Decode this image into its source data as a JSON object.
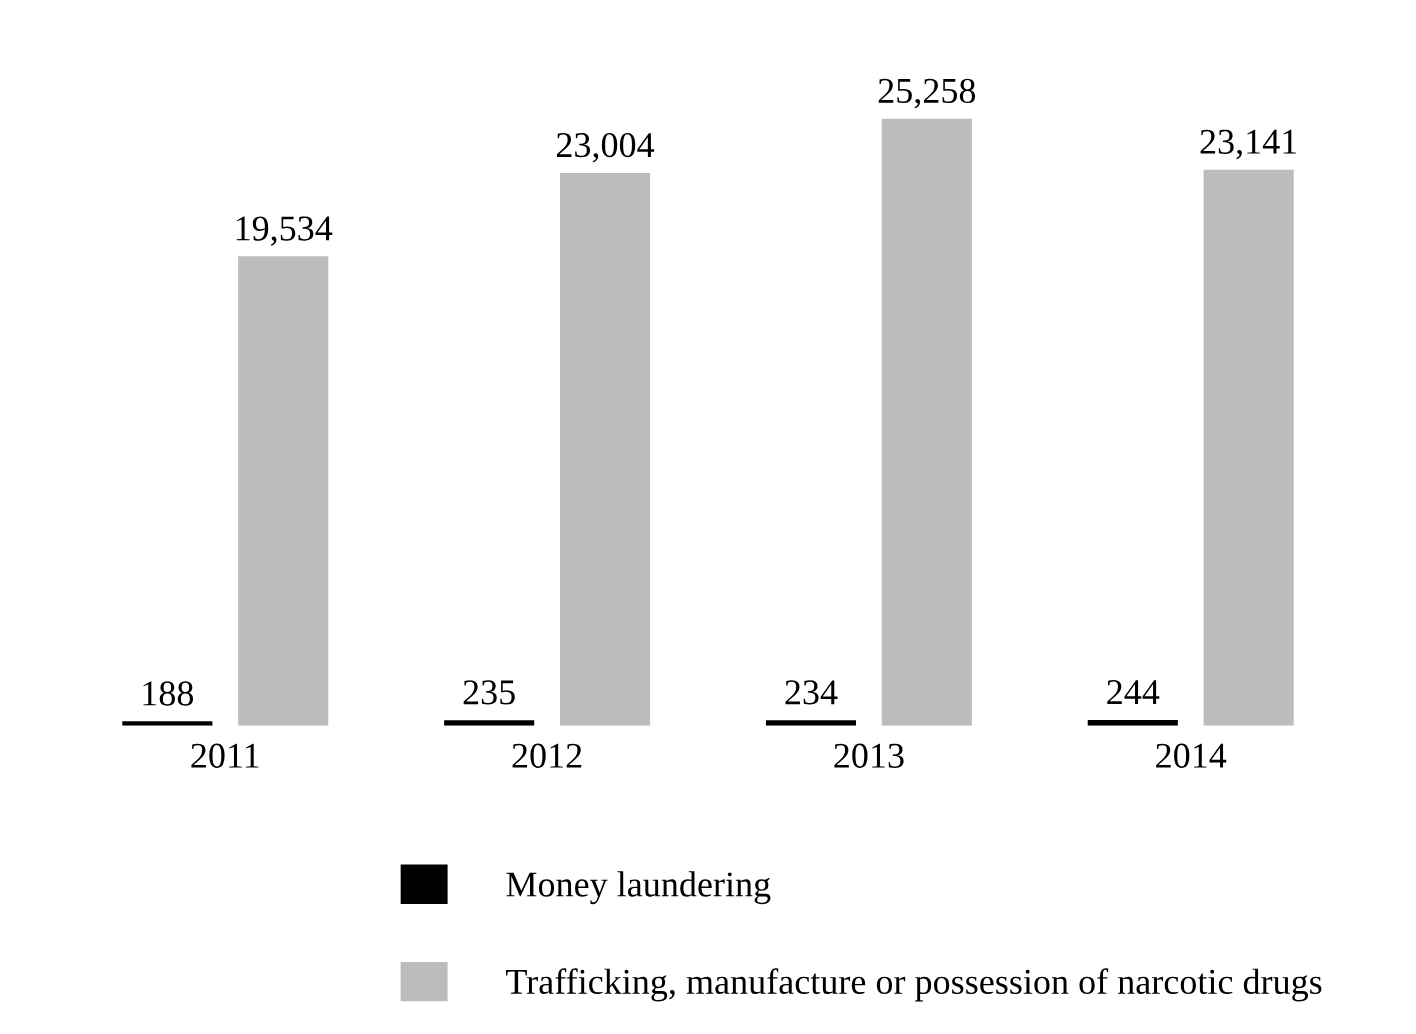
{
  "chart_data": {
    "type": "bar",
    "categories": [
      "2011",
      "2012",
      "2013",
      "2014"
    ],
    "series": [
      {
        "name": "Money laundering",
        "color": "#000000",
        "values": [
          188,
          235,
          234,
          244
        ],
        "value_labels": [
          "188",
          "235",
          "234",
          "244"
        ]
      },
      {
        "name": "Trafficking, manufacture or possession of narcotic drugs",
        "color": "#bcbcbc",
        "values": [
          19534,
          23004,
          25258,
          23141
        ],
        "value_labels": [
          "19,534",
          "23,004",
          "25,258",
          "23,141"
        ]
      }
    ],
    "legend": "bottom",
    "grid": false,
    "tick_labels": "x"
  }
}
